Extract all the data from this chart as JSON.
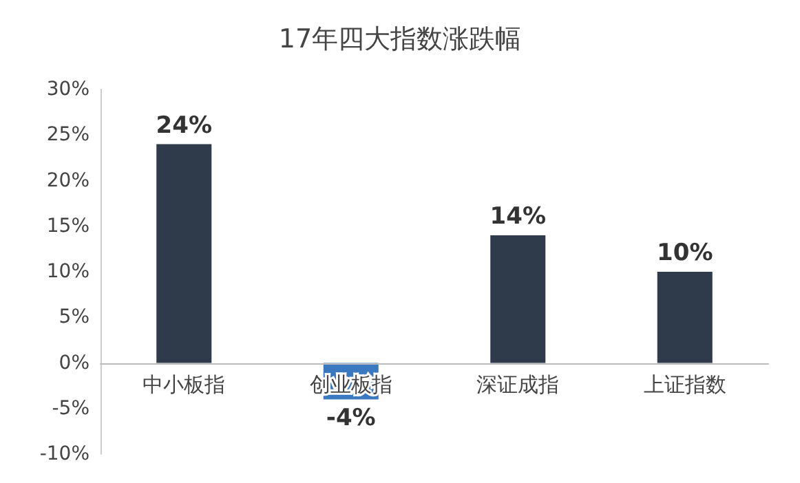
{
  "chart_data": {
    "type": "bar",
    "title": "17年四大指数涨跌幅",
    "categories": [
      "中小板指",
      "创业板指",
      "深证成指",
      "上证指数"
    ],
    "values": [
      24,
      -4,
      14,
      10
    ],
    "colors": [
      "#2f3b4b",
      "#3a78c0",
      "#2f3b4b",
      "#2f3b4b"
    ],
    "value_labels": [
      "24%",
      "-4%",
      "14%",
      "10%"
    ],
    "ylim": [
      -10,
      30
    ],
    "yticks": [
      {
        "value": -10,
        "label": "-10%"
      },
      {
        "value": -5,
        "label": "-5%"
      },
      {
        "value": 0,
        "label": "0%"
      },
      {
        "value": 5,
        "label": "5%"
      },
      {
        "value": 10,
        "label": "10%"
      },
      {
        "value": 15,
        "label": "15%"
      },
      {
        "value": 20,
        "label": "20%"
      },
      {
        "value": 25,
        "label": "25%"
      },
      {
        "value": 30,
        "label": "30%"
      }
    ],
    "grid": false
  }
}
